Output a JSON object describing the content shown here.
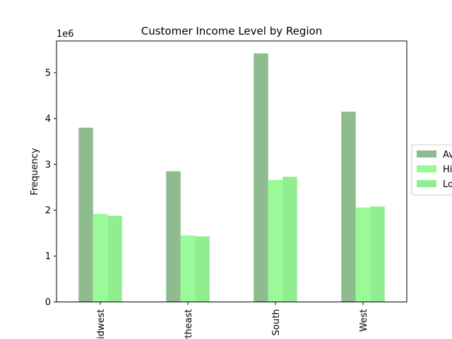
{
  "chart_data": {
    "type": "bar",
    "title": "Customer Income Level by Region",
    "xlabel": "",
    "ylabel": "Frequency",
    "y_scale_label": "1e6",
    "categories": [
      "Midwest",
      "Northeast",
      "South",
      "West"
    ],
    "series": [
      {
        "name": "Average",
        "color": "#8fbc8f",
        "values": [
          3800000,
          2850000,
          5420000,
          4150000
        ]
      },
      {
        "name": "High",
        "color": "#98fb98",
        "values": [
          1920000,
          1450000,
          2660000,
          2060000
        ]
      },
      {
        "name": "Low",
        "color": "#90ee90",
        "values": [
          1880000,
          1430000,
          2730000,
          2080000
        ]
      }
    ],
    "y_ticks": [
      {
        "value": 0,
        "label": "0"
      },
      {
        "value": 1000000,
        "label": "1"
      },
      {
        "value": 2000000,
        "label": "2"
      },
      {
        "value": 3000000,
        "label": "3"
      },
      {
        "value": 4000000,
        "label": "4"
      },
      {
        "value": 5000000,
        "label": "5"
      }
    ],
    "ylim": [
      0,
      5691000
    ],
    "grid": false,
    "legend_position": "center-right",
    "x_tick_rotation": "vertical"
  }
}
